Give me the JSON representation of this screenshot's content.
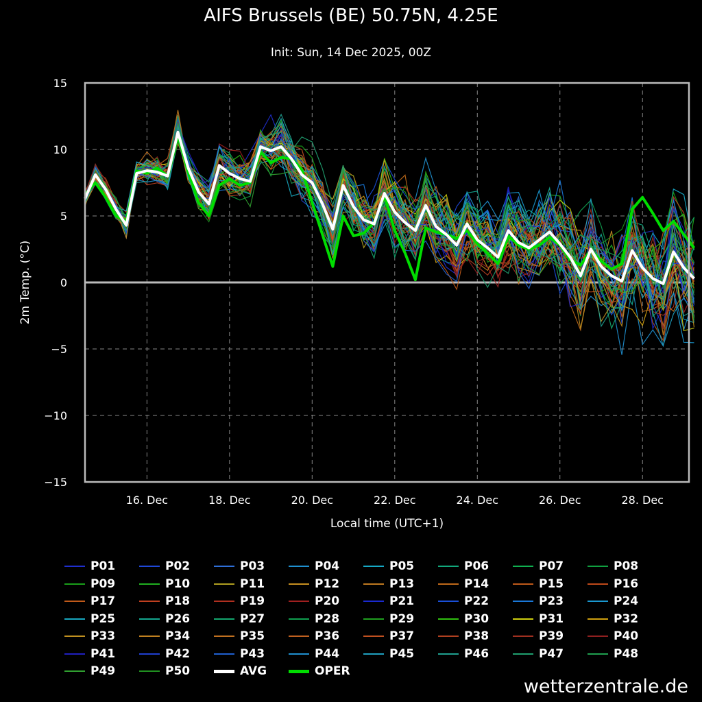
{
  "header": {
    "title": "AIFS Brussels (BE) 50.75N, 4.25E",
    "subtitle": "Init: Sun, 14 Dec 2025, 00Z"
  },
  "footer": {
    "watermark": "wetterzentrale.de"
  },
  "chart_data": {
    "type": "line",
    "ylabel": "2m Temp. (°C)",
    "xlabel": "Local time (UTC+1)",
    "ylim": [
      -15,
      15
    ],
    "xlim_hours_from_dec14": [
      12,
      363
    ],
    "y_ticks": [
      15,
      10,
      5,
      0,
      -5,
      -10,
      -15
    ],
    "y_tick_labels": [
      "15",
      "10",
      "5",
      "0",
      "−5",
      "−10",
      "−15"
    ],
    "x_ticks": [
      "16. Dec",
      "18. Dec",
      "20. Dec",
      "22. Dec",
      "24. Dec",
      "26. Dec",
      "28. Dec"
    ],
    "x_tick_hours": [
      48,
      96,
      144,
      192,
      240,
      288,
      336
    ],
    "grid": true,
    "step_hours": 6,
    "series": [
      {
        "name": "AVG",
        "color": "#ffffff",
        "width": 4,
        "values": [
          6.3,
          8.1,
          7.0,
          5.5,
          4.3,
          8.2,
          8.4,
          8.3,
          8.0,
          11.3,
          8.6,
          6.8,
          5.9,
          8.8,
          8.2,
          7.8,
          7.6,
          10.2,
          9.9,
          10.2,
          9.3,
          8.1,
          7.5,
          5.9,
          4.0,
          7.3,
          5.7,
          4.7,
          4.4,
          6.7,
          5.3,
          4.5,
          3.9,
          5.8,
          4.2,
          3.6,
          2.8,
          4.4,
          3.2,
          2.6,
          1.9,
          3.9,
          3.0,
          2.6,
          3.2,
          3.8,
          2.9,
          1.9,
          0.5,
          2.5,
          1.2,
          0.5,
          0.1,
          2.4,
          1.1,
          0.3,
          -0.1,
          2.3,
          1.1,
          0.3
        ]
      },
      {
        "name": "OPER",
        "color": "#00dd00",
        "width": 4,
        "values": [
          6.6,
          7.5,
          6.4,
          5.0,
          4.6,
          8.4,
          8.2,
          8.6,
          8.0,
          11.1,
          8.3,
          6.0,
          5.0,
          7.3,
          7.8,
          7.3,
          7.5,
          9.8,
          9.0,
          9.4,
          9.3,
          8.5,
          6.0,
          3.6,
          1.2,
          5.0,
          3.5,
          3.7,
          4.5,
          6.5,
          3.9,
          2.2,
          0.2,
          4.1,
          3.8,
          3.6,
          3.3,
          3.9,
          2.9,
          2.2,
          1.4,
          3.5,
          2.8,
          2.5,
          2.8,
          3.4,
          2.8,
          1.7,
          1.3,
          2.4,
          1.6,
          1.0,
          1.4,
          5.5,
          6.4,
          5.2,
          3.9,
          4.6,
          3.6,
          2.6
        ]
      }
    ],
    "members": [
      "P01",
      "P02",
      "P03",
      "P04",
      "P05",
      "P06",
      "P07",
      "P08",
      "P09",
      "P10",
      "P11",
      "P12",
      "P13",
      "P14",
      "P15",
      "P16",
      "P17",
      "P18",
      "P19",
      "P20",
      "P21",
      "P22",
      "P23",
      "P24",
      "P25",
      "P26",
      "P27",
      "P28",
      "P29",
      "P30",
      "P31",
      "P32",
      "P33",
      "P34",
      "P35",
      "P36",
      "P37",
      "P38",
      "P39",
      "P40",
      "P41",
      "P42",
      "P43",
      "P44",
      "P45",
      "P46",
      "P47",
      "P48",
      "P49",
      "P50"
    ],
    "member_colors": [
      "#1f2fcf",
      "#1f48d8",
      "#2f6fd8",
      "#1f90d0",
      "#16a9c6",
      "#12a87c",
      "#10b050",
      "#10a040",
      "#1aa01a",
      "#20b020",
      "#b0a020",
      "#c89020",
      "#c07a20",
      "#c06a1a",
      "#c05a1a",
      "#c04a1a",
      "#c05a1a",
      "#c04020",
      "#b03020",
      "#a02020",
      "#1a2ad0",
      "#1a50d8",
      "#1a78d8",
      "#1a98d0",
      "#18a8c0",
      "#14a890",
      "#14a870",
      "#10a050",
      "#20a020",
      "#30c010",
      "#d0d010",
      "#d0a010",
      "#c09020",
      "#c08020",
      "#c07020",
      "#c06020",
      "#c05020",
      "#b04020",
      "#a03020",
      "#902020",
      "#2020c0",
      "#2040d0",
      "#2060d0",
      "#2090d0",
      "#20a0c0",
      "#20a090",
      "#20a070",
      "#20a050",
      "#30a030",
      "#209020"
    ]
  }
}
